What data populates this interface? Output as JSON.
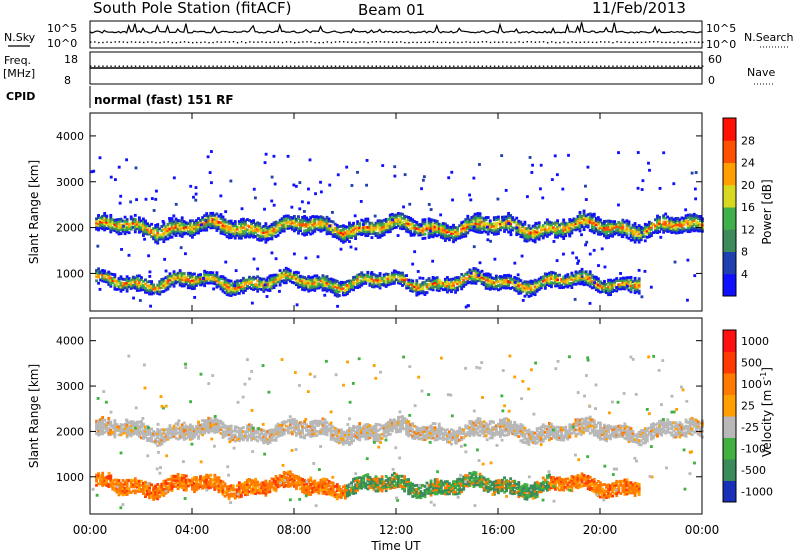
{
  "header": {
    "station": "South Pole Station (fitACF)",
    "beam": "Beam 01",
    "date": "11/Feb/2013"
  },
  "aux": {
    "nsky_label": "N.Sky",
    "nsearch_label": "N.Search",
    "nsky_ticks": [
      "10^5",
      "10^0"
    ],
    "nsearch_ticks": [
      "10^5",
      "10^0"
    ],
    "freq_label": "Freq.",
    "freq_unit": "[MHz]",
    "freq_ticks": [
      "18",
      "8"
    ],
    "nave_label": "Nave",
    "nave_ticks": [
      "60",
      "0"
    ],
    "cpid_label": "CPID",
    "cpid_value": "normal (fast) 151 RF"
  },
  "chart_data": [
    {
      "type": "heatmap",
      "panel": "power",
      "ylabel": "Slant Range [km]",
      "xlabel": "Time UT",
      "x_ticks": [
        "00:00",
        "04:00",
        "08:00",
        "12:00",
        "16:00",
        "20:00",
        "00:00"
      ],
      "y_ticks": [
        "1000",
        "2000",
        "3000",
        "4000"
      ],
      "xlim": [
        0,
        24
      ],
      "ylim": [
        180,
        4500
      ],
      "colorbar": {
        "label": "Power [dB]",
        "ticks": [
          "4",
          "8",
          "12",
          "16",
          "20",
          "24",
          "28"
        ],
        "colors": [
          "#1010ff",
          "#2040b0",
          "#3f8a5a",
          "#3fb04a",
          "#d8d820",
          "#ffa000",
          "#ff5000",
          "#ff1000"
        ]
      },
      "bands": [
        {
          "name": "upper",
          "center_km": 2000,
          "width_km": 350,
          "t_start": 0.2,
          "t_end": 24
        },
        {
          "name": "lower",
          "center_km": 800,
          "width_km": 300,
          "t_start": 0.2,
          "t_end": 21.5
        }
      ]
    },
    {
      "type": "heatmap",
      "panel": "velocity",
      "ylabel": "Slant Range [km]",
      "xlabel": "Time UT",
      "x_ticks": [
        "00:00",
        "04:00",
        "08:00",
        "12:00",
        "16:00",
        "20:00",
        "00:00"
      ],
      "y_ticks": [
        "1000",
        "2000",
        "3000",
        "4000"
      ],
      "xlim": [
        0,
        24
      ],
      "ylim": [
        180,
        4500
      ],
      "colorbar": {
        "label": "Velocity [m s",
        "label_sup": "-1",
        "label_end": "]",
        "ticks": [
          "1000",
          "500",
          "100",
          "25",
          "-25",
          "-100",
          "-500",
          "-1000"
        ],
        "colors": [
          "#1a2fb8",
          "#3a8a5a",
          "#40b040",
          "#b8b8b8",
          "#ffa000",
          "#ff7a00",
          "#ff3a00",
          "#ff1010"
        ]
      },
      "bands": [
        {
          "name": "ground-scatter",
          "center_km": 2000,
          "width_km": 320,
          "t_start": 0.2,
          "t_end": 24
        },
        {
          "name": "ionospheric",
          "center_km": 800,
          "width_km": 300,
          "t_start": 0.2,
          "t_end": 21.5
        }
      ]
    }
  ]
}
